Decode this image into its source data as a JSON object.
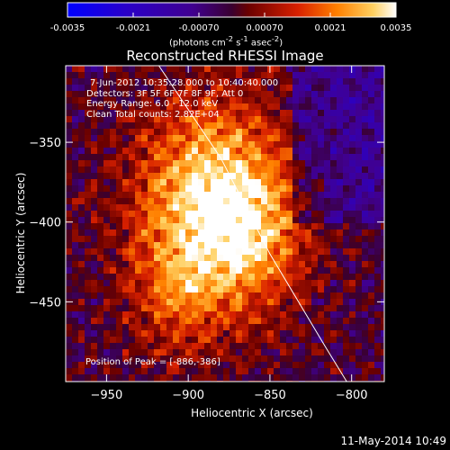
{
  "colorbar": {
    "tick_labels": [
      "-0.0035",
      "-0.0021",
      "-0.00070",
      "0.00070",
      "0.0021",
      "0.0035"
    ],
    "unit_label": "(photons cm",
    "unit_exp1": "-2",
    "unit_mid": " s",
    "unit_exp2": "-1",
    "unit_end": " asec",
    "unit_exp3": "-2",
    "unit_close": ")"
  },
  "chart_data": {
    "type": "heatmap",
    "title": "Reconstructed RHESSI Image",
    "xlabel": "Heliocentric X (arcsec)",
    "ylabel": "Heliocentric Y (arcsec)",
    "xlim": [
      -975,
      -780
    ],
    "ylim": [
      -500,
      -302
    ],
    "x_ticks": [
      -950,
      -900,
      -850,
      -800
    ],
    "y_ticks": [
      -350,
      -400,
      -450
    ],
    "x_tick_labels": [
      "−950",
      "−900",
      "−850",
      "−800"
    ],
    "y_tick_labels": [
      "−350",
      "−400",
      "−450"
    ],
    "colormap": "fire",
    "zlim": [
      -0.0035,
      0.0035
    ],
    "peak": [
      -886,
      -386
    ],
    "limb_curve": [
      [
        -918,
        -302
      ],
      [
        -880,
        -360
      ],
      [
        -850,
        -420
      ],
      [
        -815,
        -480
      ],
      [
        -803,
        -500
      ]
    ],
    "info": [
      "7-Jun-2012 10:35:28.000 to 10:40:40.000",
      "Detectors: 3F 5F 6F 7F 8F 9F, Att 0",
      "Energy Range: 6.0 - 12.0 keV",
      "Clean     Total counts: 2.82E+04"
    ],
    "peak_label": "Position of Peak = [-886,-386]"
  },
  "footer_date": "11-May-2014 10:49"
}
